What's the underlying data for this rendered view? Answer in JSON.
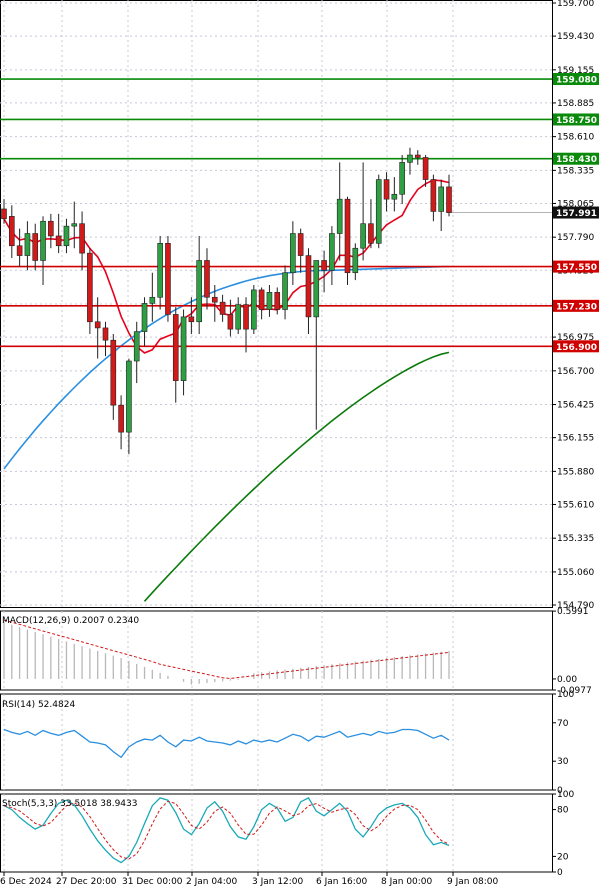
{
  "colors": {
    "up": "#2ea043",
    "down": "#d11a1a",
    "ma_fast": "#e8001c",
    "ma_mid": "#2a8fe0",
    "ma_slow": "#0b7a0b",
    "grid": "#c8c8d6",
    "hline_green": "#0a8a0a",
    "hline_red": "#d00000",
    "label_dark": "#111111"
  },
  "chart_data": [
    {
      "type": "candlestick",
      "ylim": [
        154.79,
        159.7
      ],
      "y_ticks": [
        "159.700",
        "159.430",
        "159.155",
        "158.885",
        "158.610",
        "158.335",
        "158.065",
        "157.790",
        "157.520",
        "157.245",
        "156.975",
        "156.700",
        "156.425",
        "156.155",
        "155.880",
        "155.610",
        "155.335",
        "155.060",
        "154.790"
      ],
      "x_labels": [
        "6 Dec 2024",
        "27 Dec 20:00",
        "31 Dec 00:00",
        "2 Jan 04:00",
        "3 Jan 12:00",
        "6 Jan 16:00",
        "8 Jan 00:00",
        "9 Jan 08:00"
      ],
      "current_price": "157.991",
      "levels": [
        {
          "label": "159.080",
          "value": 159.08,
          "color": "green"
        },
        {
          "label": "158.750",
          "value": 158.75,
          "color": "green"
        },
        {
          "label": "158.430",
          "value": 158.43,
          "color": "green"
        },
        {
          "label": "157.550",
          "value": 157.55,
          "color": "red"
        },
        {
          "label": "157.230",
          "value": 157.23,
          "color": "red"
        },
        {
          "label": "156.900",
          "value": 156.9,
          "color": "red"
        }
      ],
      "candles": [
        {
          "o": 158.02,
          "h": 158.1,
          "l": 157.9,
          "c": 157.94
        },
        {
          "o": 157.96,
          "h": 158.05,
          "l": 157.62,
          "c": 157.72
        },
        {
          "o": 157.72,
          "h": 157.86,
          "l": 157.55,
          "c": 157.64
        },
        {
          "o": 157.64,
          "h": 157.92,
          "l": 157.52,
          "c": 157.82
        },
        {
          "o": 157.82,
          "h": 157.9,
          "l": 157.52,
          "c": 157.6
        },
        {
          "o": 157.6,
          "h": 157.96,
          "l": 157.4,
          "c": 157.92
        },
        {
          "o": 157.92,
          "h": 157.98,
          "l": 157.7,
          "c": 157.8
        },
        {
          "o": 157.8,
          "h": 157.98,
          "l": 157.66,
          "c": 157.72
        },
        {
          "o": 157.72,
          "h": 157.94,
          "l": 157.66,
          "c": 157.88
        },
        {
          "o": 157.88,
          "h": 158.08,
          "l": 157.7,
          "c": 157.9
        },
        {
          "o": 157.9,
          "h": 158.0,
          "l": 157.52,
          "c": 157.66
        },
        {
          "o": 157.66,
          "h": 157.7,
          "l": 157.0,
          "c": 157.1
        },
        {
          "o": 157.1,
          "h": 157.3,
          "l": 156.8,
          "c": 157.05
        },
        {
          "o": 157.05,
          "h": 157.1,
          "l": 156.82,
          "c": 156.95
        },
        {
          "o": 156.95,
          "h": 157.0,
          "l": 156.3,
          "c": 156.42
        },
        {
          "o": 156.42,
          "h": 156.5,
          "l": 156.06,
          "c": 156.2
        },
        {
          "o": 156.2,
          "h": 156.8,
          "l": 156.02,
          "c": 156.78
        },
        {
          "o": 156.78,
          "h": 157.1,
          "l": 156.6,
          "c": 157.02
        },
        {
          "o": 157.02,
          "h": 157.3,
          "l": 156.9,
          "c": 157.25
        },
        {
          "o": 157.25,
          "h": 157.5,
          "l": 157.1,
          "c": 157.3
        },
        {
          "o": 157.3,
          "h": 157.8,
          "l": 157.2,
          "c": 157.74
        },
        {
          "o": 157.74,
          "h": 157.8,
          "l": 157.1,
          "c": 157.16
        },
        {
          "o": 157.16,
          "h": 157.22,
          "l": 156.44,
          "c": 156.62
        },
        {
          "o": 156.62,
          "h": 157.2,
          "l": 156.5,
          "c": 157.14
        },
        {
          "o": 157.14,
          "h": 157.3,
          "l": 157.0,
          "c": 157.1
        },
        {
          "o": 157.1,
          "h": 157.8,
          "l": 157.0,
          "c": 157.6
        },
        {
          "o": 157.6,
          "h": 157.7,
          "l": 157.2,
          "c": 157.3
        },
        {
          "o": 157.3,
          "h": 157.4,
          "l": 157.1,
          "c": 157.26
        },
        {
          "o": 157.26,
          "h": 157.32,
          "l": 157.1,
          "c": 157.16
        },
        {
          "o": 157.16,
          "h": 157.28,
          "l": 156.98,
          "c": 157.04
        },
        {
          "o": 157.04,
          "h": 157.3,
          "l": 157.0,
          "c": 157.24
        },
        {
          "o": 157.24,
          "h": 157.3,
          "l": 156.85,
          "c": 157.04
        },
        {
          "o": 157.04,
          "h": 157.4,
          "l": 157.0,
          "c": 157.36
        },
        {
          "o": 157.36,
          "h": 157.38,
          "l": 157.12,
          "c": 157.2
        },
        {
          "o": 157.2,
          "h": 157.4,
          "l": 157.14,
          "c": 157.34
        },
        {
          "o": 157.34,
          "h": 157.38,
          "l": 157.16,
          "c": 157.2
        },
        {
          "o": 157.2,
          "h": 157.56,
          "l": 157.12,
          "c": 157.5
        },
        {
          "o": 157.5,
          "h": 157.92,
          "l": 157.4,
          "c": 157.82
        },
        {
          "o": 157.82,
          "h": 157.86,
          "l": 157.5,
          "c": 157.64
        },
        {
          "o": 157.64,
          "h": 157.7,
          "l": 157.0,
          "c": 157.14
        },
        {
          "o": 157.14,
          "h": 157.6,
          "l": 156.22,
          "c": 157.6
        },
        {
          "o": 157.6,
          "h": 157.68,
          "l": 157.34,
          "c": 157.52
        },
        {
          "o": 157.52,
          "h": 157.88,
          "l": 157.4,
          "c": 157.82
        },
        {
          "o": 157.82,
          "h": 158.4,
          "l": 157.6,
          "c": 158.1
        },
        {
          "o": 158.1,
          "h": 158.12,
          "l": 157.4,
          "c": 157.5
        },
        {
          "o": 157.5,
          "h": 157.74,
          "l": 157.44,
          "c": 157.7
        },
        {
          "o": 157.7,
          "h": 158.4,
          "l": 157.6,
          "c": 157.9
        },
        {
          "o": 157.9,
          "h": 158.1,
          "l": 157.7,
          "c": 157.74
        },
        {
          "o": 157.74,
          "h": 158.3,
          "l": 157.7,
          "c": 158.26
        },
        {
          "o": 158.26,
          "h": 158.32,
          "l": 158.0,
          "c": 158.1
        },
        {
          "o": 158.1,
          "h": 158.28,
          "l": 158.0,
          "c": 158.14
        },
        {
          "o": 158.14,
          "h": 158.46,
          "l": 158.06,
          "c": 158.4
        },
        {
          "o": 158.4,
          "h": 158.52,
          "l": 158.3,
          "c": 158.46
        },
        {
          "o": 158.46,
          "h": 158.5,
          "l": 158.38,
          "c": 158.44
        },
        {
          "o": 158.44,
          "h": 158.46,
          "l": 158.2,
          "c": 158.26
        },
        {
          "o": 158.26,
          "h": 158.3,
          "l": 157.92,
          "c": 158.0
        },
        {
          "o": 158.0,
          "h": 158.26,
          "l": 157.84,
          "c": 158.2
        },
        {
          "o": 158.2,
          "h": 158.3,
          "l": 157.96,
          "c": 157.99
        }
      ]
    },
    {
      "type": "line",
      "title": "MACD(12,26,9) 0.2007 0.2340",
      "y_ticks": [
        "0.5991",
        "0.00",
        "-0.0977"
      ],
      "ylim": [
        -0.0977,
        0.6
      ]
    },
    {
      "type": "line",
      "title": "RSI(14) 52.4824",
      "y_ticks": [
        "100",
        "70",
        "30",
        "0"
      ],
      "ylim": [
        0,
        100
      ]
    },
    {
      "type": "line",
      "title": "Stoch(5,3,3) 33.5018 38.9433",
      "y_ticks": [
        "100",
        "80",
        "20",
        "0"
      ],
      "ylim": [
        0,
        100
      ]
    }
  ]
}
